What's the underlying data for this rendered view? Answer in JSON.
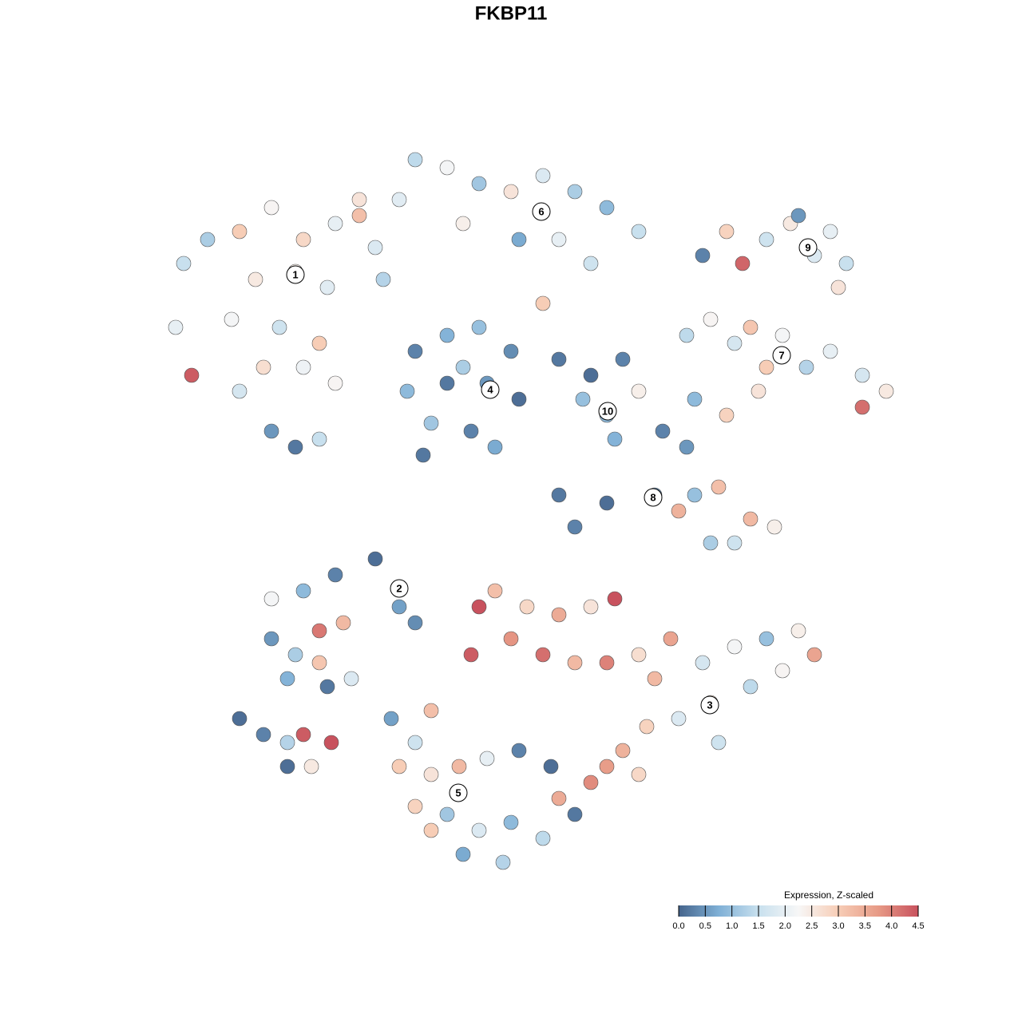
{
  "chart_data": {
    "type": "scatter",
    "title": "FKBP11",
    "xlim": [
      0,
      128
    ],
    "ylim": [
      128,
      0
    ],
    "series": [
      {
        "x": [
          23,
          26,
          30,
          34,
          38,
          42,
          45,
          47,
          32,
          37,
          41,
          29,
          35,
          40,
          33,
          38,
          30,
          42,
          24,
          22,
          34,
          37,
          40,
          45,
          48,
          52,
          56,
          60,
          64,
          68,
          72,
          76,
          80,
          70,
          65,
          58,
          50,
          74,
          68,
          52,
          56,
          60,
          64,
          51,
          56,
          61,
          65,
          54,
          59,
          62,
          53,
          58,
          70,
          74,
          78,
          76,
          73,
          80,
          77,
          88,
          91,
          93,
          96,
          99,
          102,
          104,
          106,
          100,
          105,
          86,
          89,
          92,
          94,
          98,
          101,
          104,
          108,
          111,
          108,
          95,
          91,
          87,
          96,
          83,
          86,
          70,
          76,
          82,
          87,
          90,
          94,
          97,
          92,
          89,
          85,
          72,
          34,
          38,
          42,
          47,
          50,
          34,
          37,
          40,
          43,
          40,
          44,
          36,
          41,
          52,
          30,
          33,
          36,
          38,
          41.5,
          39,
          36,
          60,
          62,
          66,
          70,
          74,
          77,
          64,
          68,
          72,
          76,
          80,
          84,
          59,
          88,
          92,
          96,
          100,
          102,
          94,
          89,
          85,
          81,
          78,
          80,
          76,
          90,
          82,
          98,
          49,
          52,
          54,
          50,
          54,
          57.5,
          61,
          65,
          69,
          52,
          56,
          60,
          64,
          68,
          72,
          58,
          63,
          70,
          74,
          54
        ],
        "y": [
          33,
          30,
          29,
          26,
          30,
          28,
          27,
          31,
          35,
          34,
          36,
          40,
          41,
          43,
          46,
          46,
          49,
          48,
          47,
          41,
          54,
          56,
          55,
          25,
          35,
          20,
          21,
          23,
          24,
          22,
          24,
          26,
          29,
          30,
          30,
          28,
          25,
          33,
          38,
          44,
          42,
          41,
          44,
          49,
          48,
          48,
          50,
          53,
          54,
          56,
          57,
          46,
          45,
          47,
          45,
          52,
          50,
          49,
          55,
          32,
          29,
          33,
          30,
          28,
          32,
          29,
          33,
          27,
          36,
          42,
          40,
          43,
          41,
          42,
          46,
          44,
          47,
          49,
          51,
          49,
          52,
          50,
          46,
          54,
          56,
          62,
          63,
          62,
          62,
          61,
          65,
          66,
          68,
          68,
          64,
          66,
          75,
          74,
          72,
          70,
          76,
          80,
          82,
          79,
          78,
          83,
          85,
          85,
          86,
          78,
          90,
          92,
          93,
          92,
          93,
          96,
          96,
          76,
          74,
          76,
          77,
          76,
          75,
          80,
          82,
          83,
          83,
          82,
          80,
          82,
          83,
          81,
          80,
          79,
          82,
          86,
          88,
          90,
          91,
          94,
          97,
          96,
          93,
          85,
          84,
          90,
          93,
          89,
          96,
          97,
          96,
          95,
          94,
          96,
          101,
          102,
          104,
          103,
          105,
          102,
          107,
          108,
          100,
          98,
          104
        ],
        "values": [
          1.5,
          1.2,
          3.0,
          2.3,
          2.8,
          2.0,
          3.2,
          1.8,
          2.5,
          2.4,
          1.9,
          2.2,
          1.6,
          3.0,
          2.7,
          2.1,
          1.7,
          2.3,
          4.4,
          2.0,
          0.5,
          0.2,
          1.5,
          2.6,
          1.3,
          1.4,
          2.2,
          1.1,
          2.6,
          1.8,
          1.2,
          0.9,
          1.5,
          2.0,
          0.7,
          2.4,
          1.9,
          1.6,
          3.0,
          0.3,
          0.8,
          1.0,
          0.4,
          0.9,
          0.2,
          0.5,
          0.1,
          1.1,
          0.3,
          0.7,
          0.2,
          1.2,
          0.2,
          0.1,
          0.3,
          0.9,
          1.0,
          2.4,
          0.8,
          0.3,
          2.9,
          4.3,
          1.6,
          2.5,
          1.8,
          2.0,
          1.5,
          0.5,
          2.6,
          1.4,
          2.3,
          1.7,
          3.1,
          2.2,
          1.3,
          2.0,
          1.7,
          2.5,
          4.2,
          2.6,
          2.9,
          0.9,
          3.0,
          0.3,
          0.5,
          0.2,
          0.1,
          0.4,
          1.0,
          3.2,
          3.3,
          2.4,
          1.6,
          1.2,
          3.4,
          0.3,
          2.2,
          0.9,
          0.3,
          0.1,
          0.6,
          0.5,
          1.2,
          4.1,
          3.3,
          3.1,
          1.8,
          0.8,
          0.2,
          0.4,
          0.1,
          0.3,
          1.3,
          4.4,
          4.5,
          2.5,
          0.1,
          4.5,
          3.2,
          2.8,
          3.5,
          2.6,
          4.5,
          3.8,
          4.2,
          3.3,
          4.0,
          2.7,
          3.6,
          4.4,
          1.7,
          2.2,
          1.0,
          2.4,
          3.6,
          1.4,
          2.7,
          1.8,
          2.9,
          3.4,
          2.8,
          3.7,
          1.6,
          3.3,
          2.3,
          0.6,
          1.6,
          3.2,
          3.0,
          2.6,
          3.3,
          2.0,
          0.3,
          0.1,
          2.9,
          1.1,
          1.8,
          0.9,
          1.4,
          0.2,
          0.7,
          1.3,
          3.5,
          3.9,
          3.0
        ]
      }
    ],
    "annotations": [
      {
        "label": "1",
        "x": 37.0,
        "y": 34.4
      },
      {
        "label": "2",
        "x": 50.0,
        "y": 73.7
      },
      {
        "label": "3",
        "x": 88.9,
        "y": 88.3
      },
      {
        "label": "4",
        "x": 61.4,
        "y": 48.8
      },
      {
        "label": "5",
        "x": 57.4,
        "y": 99.3
      },
      {
        "label": "6",
        "x": 67.8,
        "y": 26.5
      },
      {
        "label": "7",
        "x": 97.9,
        "y": 44.5
      },
      {
        "label": "8",
        "x": 81.8,
        "y": 62.3
      },
      {
        "label": "9",
        "x": 101.2,
        "y": 31.0
      },
      {
        "label": "10",
        "x": 76.1,
        "y": 51.5
      }
    ],
    "colorbar": {
      "title": "Expression, Z-scaled",
      "clim": [
        0,
        4.5
      ],
      "ticks": [
        {
          "value": 0,
          "label": "0.0"
        },
        {
          "value": 0.5,
          "label": "0.5"
        },
        {
          "value": 1,
          "label": "1.0"
        },
        {
          "value": 1.5,
          "label": "1.5"
        },
        {
          "value": 2,
          "label": "2.0"
        },
        {
          "value": 2.5,
          "label": "2.5"
        },
        {
          "value": 3,
          "label": "3.0"
        },
        {
          "value": 3.5,
          "label": "3.5"
        },
        {
          "value": 4,
          "label": "4.0"
        },
        {
          "value": 4.5,
          "label": "4.5"
        }
      ],
      "colors": [
        "#45648c",
        "#7fb0d6",
        "#c8e0ee",
        "#f7f7f7",
        "#f7cdb6",
        "#e79a86",
        "#c8525e"
      ]
    }
  }
}
